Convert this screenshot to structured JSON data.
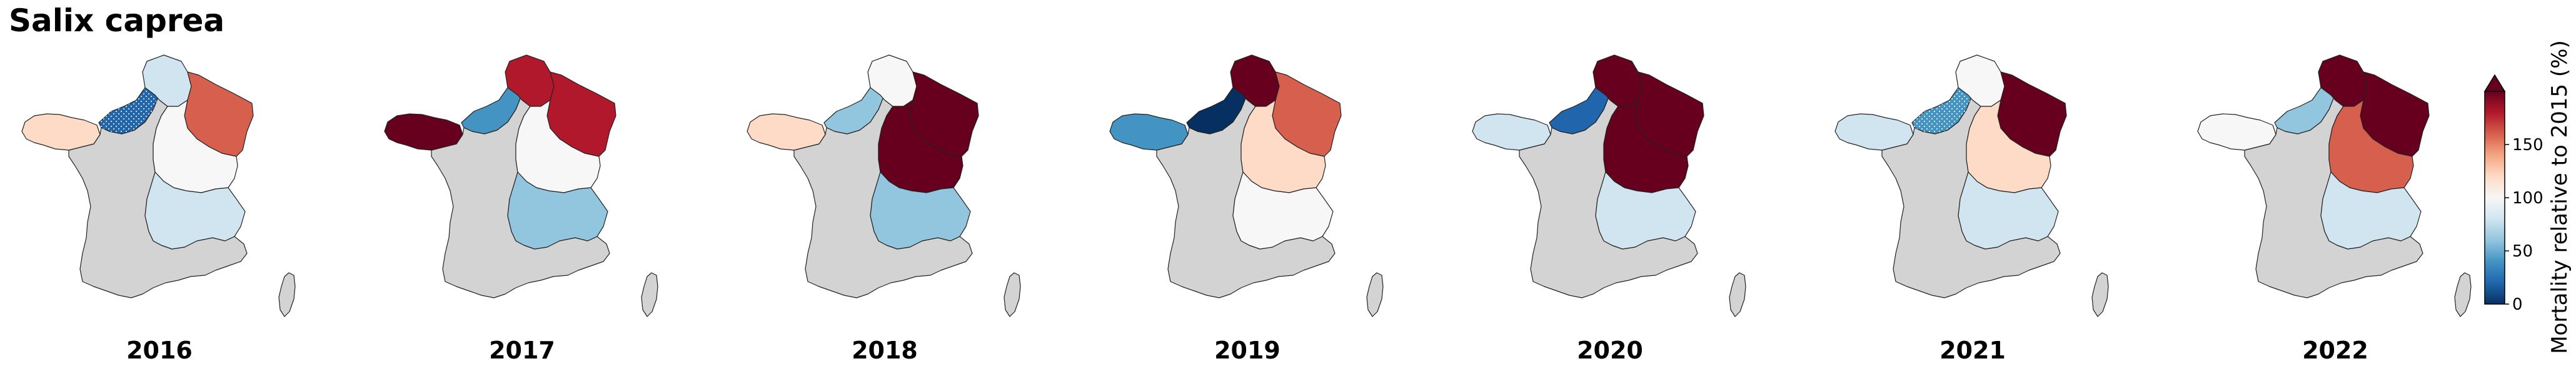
{
  "title": "Salix caprea",
  "colors": {
    "no_data": "#d3d3d3",
    "outline": "#222222",
    "scale": [
      "#053061",
      "#2166ac",
      "#4393c3",
      "#92c5de",
      "#d1e5f0",
      "#f7f7f7",
      "#fddbc7",
      "#f4a582",
      "#d6604d",
      "#b2182b",
      "#67001f"
    ]
  },
  "colorbar": {
    "label": "Mortality relative to 2015 (%)",
    "ticks": [
      "0",
      "50",
      "100",
      "150"
    ],
    "min": 0,
    "max": 200,
    "extend": "max"
  },
  "regions": [
    "Bretagne",
    "Normandie",
    "Hauts-de-France",
    "Grand Est",
    "Bourgogne-Franche-Comté",
    "Auvergne-Rhône-Alpes"
  ],
  "panels": [
    {
      "year": "2016",
      "values": {
        "Bretagne": 112,
        "Normandie": 20,
        "Hauts-de-France": 70,
        "Grand Est": 150,
        "Bourgogne-Franche-Comté": 95,
        "Auvergne-Rhône-Alpes": 85
      },
      "hatched": [
        "Normandie"
      ]
    },
    {
      "year": "2017",
      "values": {
        "Bretagne": 200,
        "Normandie": 30,
        "Hauts-de-France": 172,
        "Grand Est": 185,
        "Bourgogne-Franche-Comté": 90,
        "Auvergne-Rhône-Alpes": 55
      },
      "hatched": []
    },
    {
      "year": "2018",
      "values": {
        "Bretagne": 118,
        "Normandie": 60,
        "Hauts-de-France": 98,
        "Grand Est": 200,
        "Bourgogne-Franche-Comté": 200,
        "Auvergne-Rhône-Alpes": 55
      },
      "hatched": []
    },
    {
      "year": "2019",
      "values": {
        "Bretagne": 45,
        "Normandie": 8,
        "Hauts-de-France": 200,
        "Grand Est": 160,
        "Bourgogne-Franche-Comté": 112,
        "Auvergne-Rhône-Alpes": 90
      },
      "hatched": []
    },
    {
      "year": "2020",
      "values": {
        "Bretagne": 75,
        "Normandie": 25,
        "Hauts-de-France": 200,
        "Grand Est": 200,
        "Bourgogne-Franche-Comté": 200,
        "Auvergne-Rhône-Alpes": 70
      },
      "hatched": []
    },
    {
      "year": "2021",
      "values": {
        "Bretagne": 85,
        "Normandie": 30,
        "Hauts-de-France": 92,
        "Grand Est": 200,
        "Bourgogne-Franche-Comté": 120,
        "Auvergne-Rhône-Alpes": 85
      },
      "hatched": [
        "Normandie"
      ]
    },
    {
      "year": "2022",
      "values": {
        "Bretagne": 102,
        "Normandie": 50,
        "Hauts-de-France": 200,
        "Grand Est": 200,
        "Bourgogne-Franche-Comté": 155,
        "Auvergne-Rhône-Alpes": 85
      },
      "hatched": []
    }
  ]
}
